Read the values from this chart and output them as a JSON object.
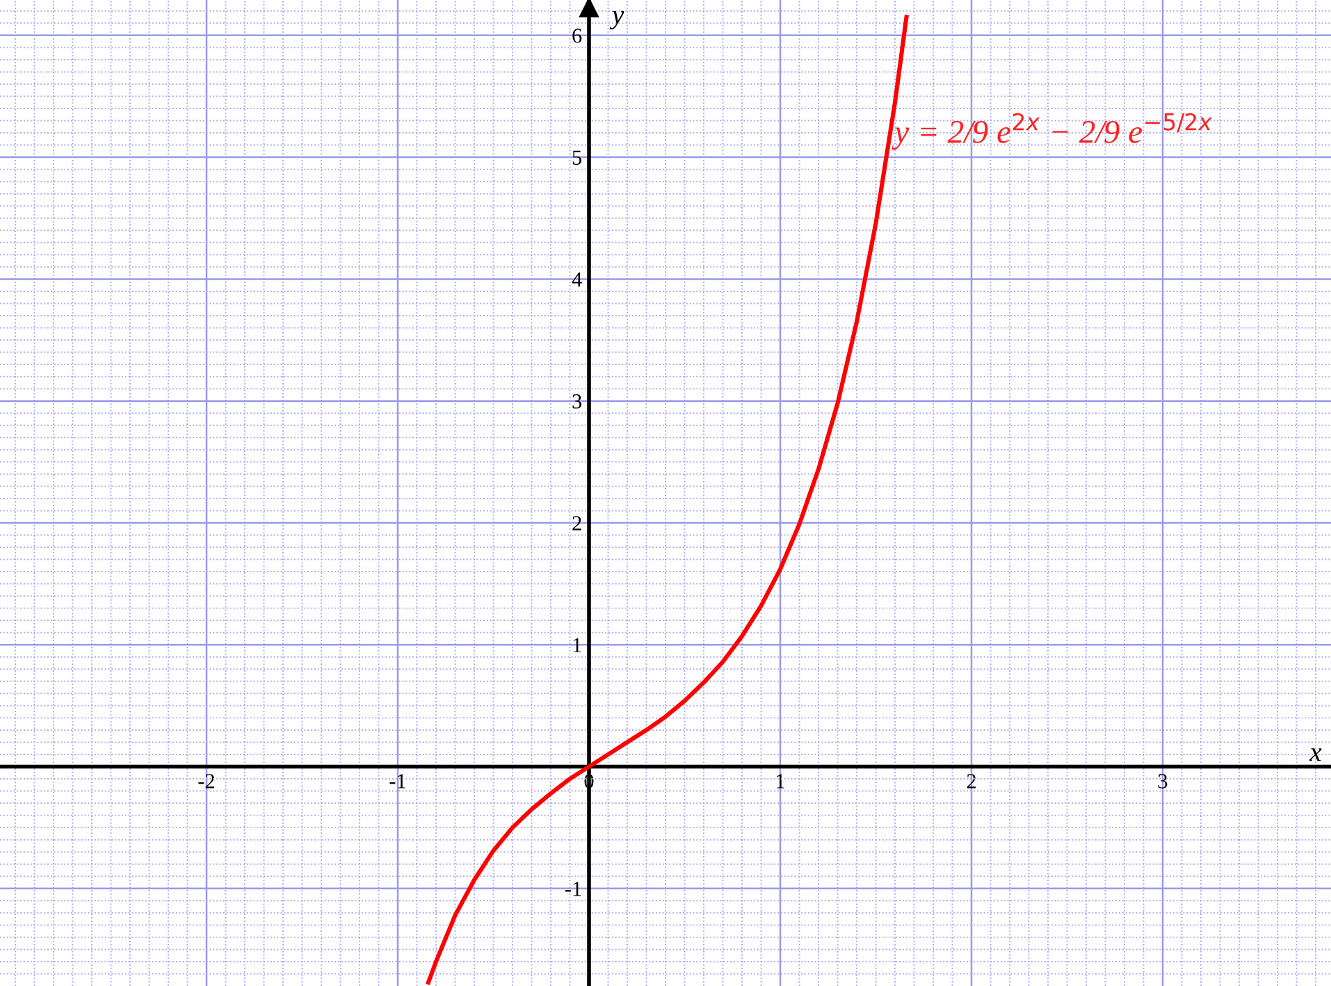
{
  "chart_data": {
    "type": "line",
    "xlabel": "x",
    "ylabel": "y",
    "x": [
      -0.84,
      -0.8,
      -0.7,
      -0.6,
      -0.5,
      -0.4,
      -0.3,
      -0.2,
      -0.1,
      0,
      0.1,
      0.2,
      0.3,
      0.4,
      0.5,
      0.6,
      0.7,
      0.8,
      0.9,
      1.0,
      1.1,
      1.2,
      1.3,
      1.4,
      1.5,
      1.6,
      1.66
    ],
    "series": [
      {
        "color": "#ff0000",
        "values": [
          -1.77,
          -1.6,
          -1.22,
          -0.93,
          -0.69,
          -0.5,
          -0.35,
          -0.22,
          -0.1,
          0,
          0.1,
          0.2,
          0.3,
          0.41,
          0.54,
          0.69,
          0.86,
          1.07,
          1.32,
          1.62,
          1.99,
          2.44,
          2.98,
          3.65,
          4.46,
          5.45,
          6.15
        ]
      }
    ],
    "xlim": [
      -3.08,
      3.88
    ],
    "ylim": [
      -1.8,
      6.29
    ],
    "xticks": [
      {
        "value": -3.0,
        "label": null
      },
      {
        "value": -2.9,
        "label": null
      },
      {
        "value": -2.8,
        "label": null
      },
      {
        "value": -2.7,
        "label": null
      },
      {
        "value": -2.6,
        "label": null
      },
      {
        "value": -2.5,
        "label": null
      },
      {
        "value": -2.4,
        "label": null
      },
      {
        "value": -2.3,
        "label": null
      },
      {
        "value": -2.2,
        "label": null
      },
      {
        "value": -2.1,
        "label": null
      },
      -2,
      {
        "value": -1.9,
        "label": null
      },
      {
        "value": -1.8,
        "label": null
      },
      {
        "value": -1.7,
        "label": null
      },
      {
        "value": -1.6,
        "label": null
      },
      {
        "value": -1.5,
        "label": null
      },
      {
        "value": -1.4,
        "label": null
      },
      {
        "value": -1.3,
        "label": null
      },
      {
        "value": -1.2,
        "label": null
      },
      {
        "value": -1.1,
        "label": null
      },
      -1,
      {
        "value": -0.9,
        "label": null
      },
      {
        "value": -0.8,
        "label": null
      },
      {
        "value": -0.7,
        "label": null
      },
      {
        "value": -0.6,
        "label": null
      },
      {
        "value": -0.5,
        "label": null
      },
      {
        "value": -0.4,
        "label": null
      },
      {
        "value": -0.3,
        "label": null
      },
      {
        "value": -0.2,
        "label": null
      },
      {
        "value": -0.1,
        "label": null
      },
      0,
      {
        "value": 0.1,
        "label": null
      },
      {
        "value": 0.2,
        "label": null
      },
      {
        "value": 0.3,
        "label": null
      },
      {
        "value": 0.4,
        "label": null
      },
      {
        "value": 0.5,
        "label": null
      },
      {
        "value": 0.6,
        "label": null
      },
      {
        "value": 0.7,
        "label": null
      },
      {
        "value": 0.8,
        "label": null
      },
      {
        "value": 0.9,
        "label": null
      },
      1,
      {
        "value": 1.1,
        "label": null
      },
      {
        "value": 1.2,
        "label": null
      },
      {
        "value": 1.3,
        "label": null
      },
      {
        "value": 1.4,
        "label": null
      },
      {
        "value": 1.5,
        "label": null
      },
      {
        "value": 1.6,
        "label": null
      },
      {
        "value": 1.7,
        "label": null
      },
      {
        "value": 1.8,
        "label": null
      },
      {
        "value": 1.9,
        "label": null
      },
      2,
      {
        "value": 2.1,
        "label": null
      },
      {
        "value": 2.2,
        "label": null
      },
      {
        "value": 2.3,
        "label": null
      },
      {
        "value": 2.4,
        "label": null
      },
      {
        "value": 2.5,
        "label": null
      },
      {
        "value": 2.6,
        "label": null
      },
      {
        "value": 2.7,
        "label": null
      },
      {
        "value": 2.8,
        "label": null
      },
      {
        "value": 2.9,
        "label": null
      },
      3,
      {
        "value": 3.1,
        "label": null
      },
      {
        "value": 3.2,
        "label": null
      },
      {
        "value": 3.3,
        "label": null
      },
      {
        "value": 3.4,
        "label": null
      },
      {
        "value": 3.5,
        "label": null
      },
      {
        "value": 3.6,
        "label": null
      },
      {
        "value": 3.7,
        "label": null
      },
      {
        "value": 3.8,
        "label": null
      }
    ],
    "yticks": [
      {
        "value": -1.7,
        "label": null
      },
      {
        "value": -1.6,
        "label": null
      },
      {
        "value": -1.5,
        "label": null
      },
      {
        "value": -1.4,
        "label": null
      },
      {
        "value": -1.3,
        "label": null
      },
      {
        "value": -1.2,
        "label": null
      },
      {
        "value": -1.1,
        "label": null
      },
      -1,
      {
        "value": -0.9,
        "label": null
      },
      {
        "value": -0.8,
        "label": null
      },
      {
        "value": -0.7,
        "label": null
      },
      {
        "value": -0.6,
        "label": null
      },
      {
        "value": -0.5,
        "label": null
      },
      {
        "value": -0.4,
        "label": null
      },
      {
        "value": -0.3,
        "label": null
      },
      {
        "value": -0.2,
        "label": null
      },
      {
        "value": -0.1,
        "label": null
      },
      {
        "value": 0,
        "label": null
      },
      {
        "value": 0.1,
        "label": null
      },
      {
        "value": 0.2,
        "label": null
      },
      {
        "value": 0.3,
        "label": null
      },
      {
        "value": 0.4,
        "label": null
      },
      {
        "value": 0.5,
        "label": null
      },
      {
        "value": 0.6,
        "label": null
      },
      {
        "value": 0.7,
        "label": null
      },
      {
        "value": 0.8,
        "label": null
      },
      {
        "value": 0.9,
        "label": null
      },
      1,
      {
        "value": 1.1,
        "label": null
      },
      {
        "value": 1.2,
        "label": null
      },
      {
        "value": 1.3,
        "label": null
      },
      {
        "value": 1.4,
        "label": null
      },
      {
        "value": 1.5,
        "label": null
      },
      {
        "value": 1.6,
        "label": null
      },
      {
        "value": 1.7,
        "label": null
      },
      {
        "value": 1.8,
        "label": null
      },
      {
        "value": 1.9,
        "label": null
      },
      2,
      {
        "value": 2.1,
        "label": null
      },
      {
        "value": 2.2,
        "label": null
      },
      {
        "value": 2.3,
        "label": null
      },
      {
        "value": 2.4,
        "label": null
      },
      {
        "value": 2.5,
        "label": null
      },
      {
        "value": 2.6,
        "label": null
      },
      {
        "value": 2.7,
        "label": null
      },
      {
        "value": 2.8,
        "label": null
      },
      {
        "value": 2.9,
        "label": null
      },
      3,
      {
        "value": 3.1,
        "label": null
      },
      {
        "value": 3.2,
        "label": null
      },
      {
        "value": 3.3,
        "label": null
      },
      {
        "value": 3.4,
        "label": null
      },
      {
        "value": 3.5,
        "label": null
      },
      {
        "value": 3.6,
        "label": null
      },
      {
        "value": 3.7,
        "label": null
      },
      {
        "value": 3.8,
        "label": null
      },
      {
        "value": 3.9,
        "label": null
      },
      4,
      {
        "value": 4.1,
        "label": null
      },
      {
        "value": 4.2,
        "label": null
      },
      {
        "value": 4.3,
        "label": null
      },
      {
        "value": 4.4,
        "label": null
      },
      {
        "value": 4.5,
        "label": null
      },
      {
        "value": 4.6,
        "label": null
      },
      {
        "value": 4.7,
        "label": null
      },
      {
        "value": 4.8,
        "label": null
      },
      {
        "value": 4.9,
        "label": null
      },
      5,
      {
        "value": 5.1,
        "label": null
      },
      {
        "value": 5.2,
        "label": null
      },
      {
        "value": 5.3,
        "label": null
      },
      {
        "value": 5.4,
        "label": null
      },
      {
        "value": 5.5,
        "label": null
      },
      {
        "value": 5.6,
        "label": null
      },
      {
        "value": 5.7,
        "label": null
      },
      {
        "value": 5.8,
        "label": null
      },
      {
        "value": 5.9,
        "label": null
      },
      6,
      {
        "value": 6.1,
        "label": null
      },
      {
        "value": 6.2,
        "label": null
      }
    ],
    "grid": true,
    "marker": "none",
    "line_style": "solid",
    "annotations": [
      "y = 2/9 e$^{2x}$ − 2/9 e$^{−5/2x}$"
    ]
  }
}
